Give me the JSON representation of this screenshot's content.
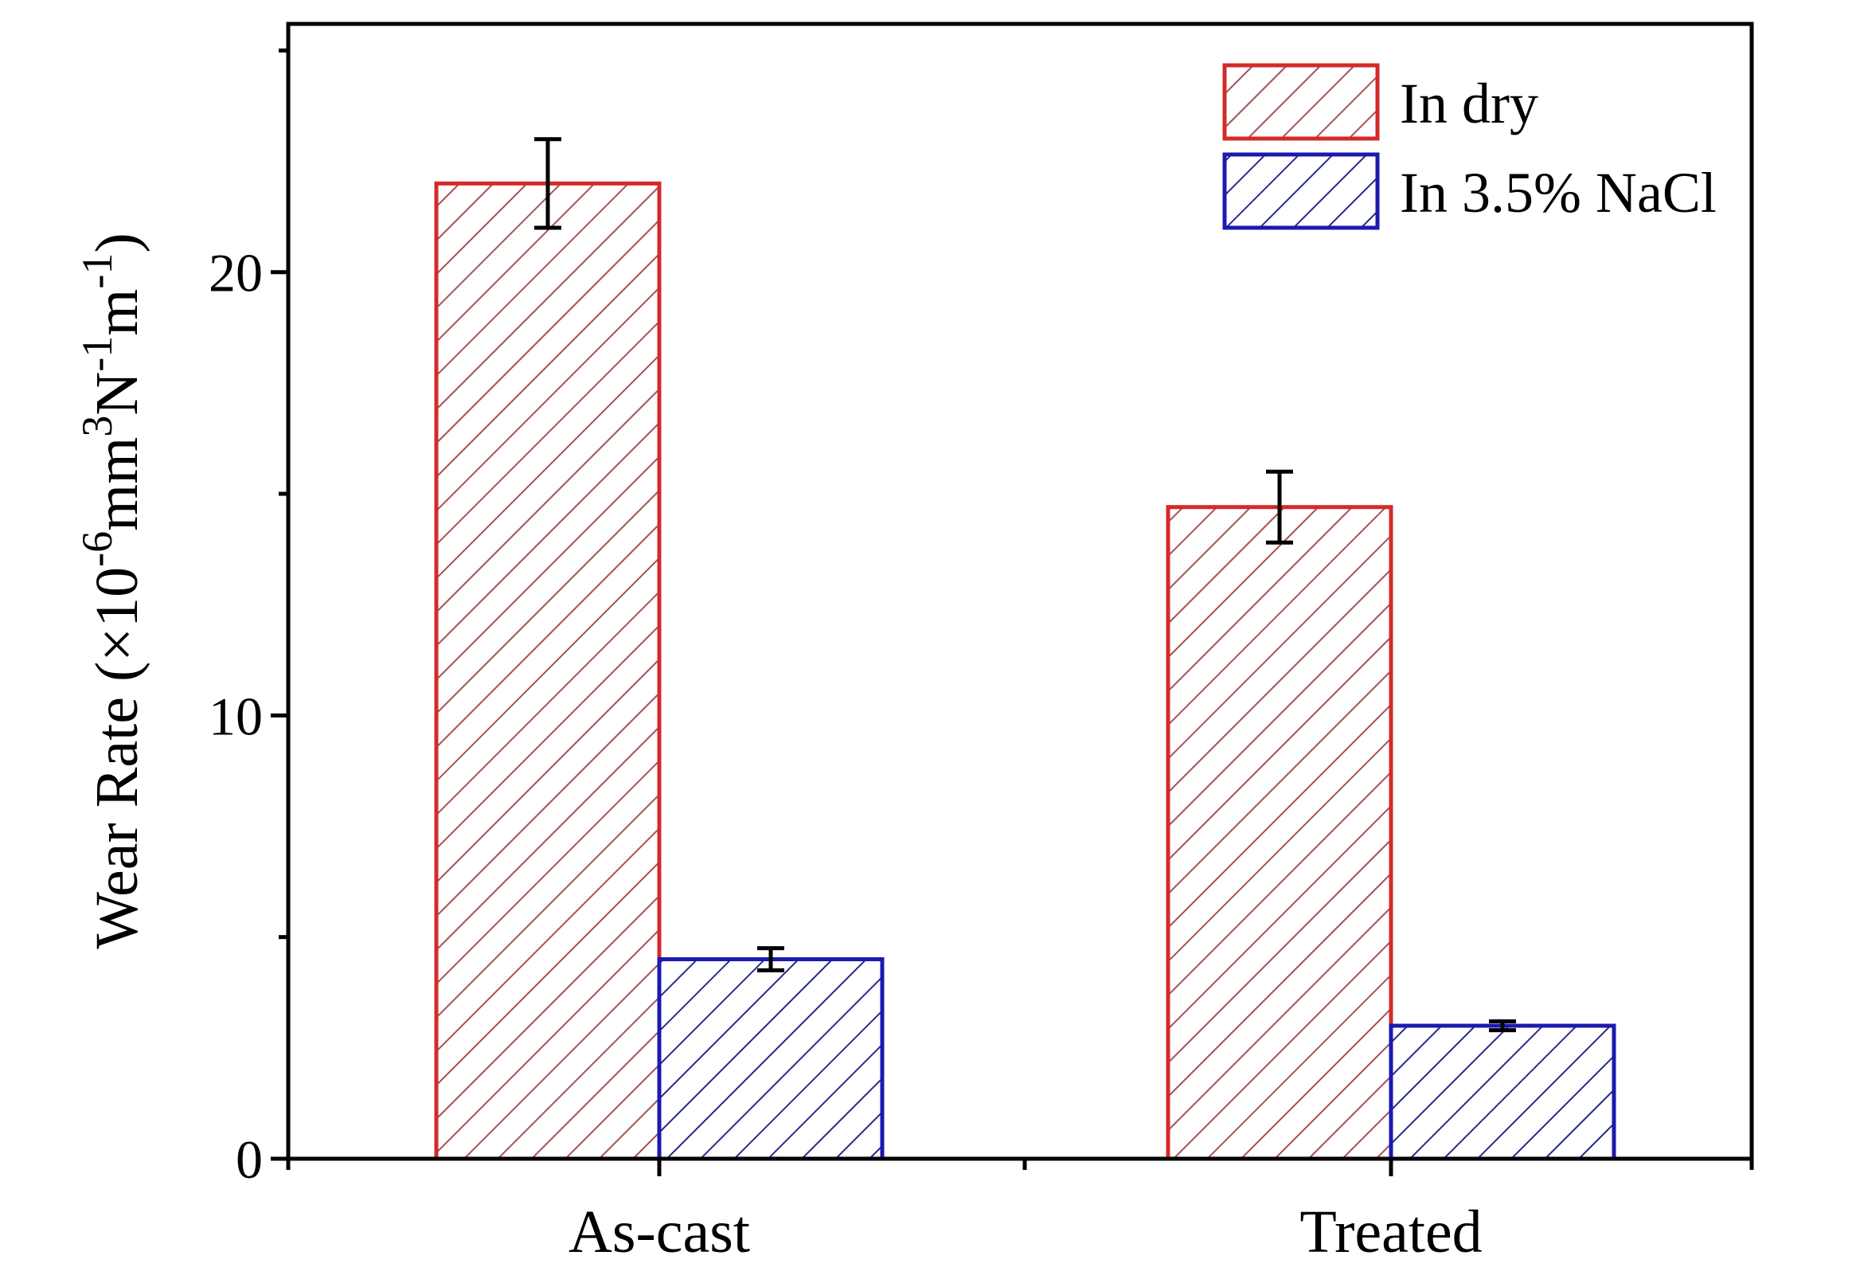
{
  "colors": {
    "dry": "#d42a2a",
    "dry_hatch": "#a85050",
    "nacl": "#1a1ab0",
    "nacl_hatch": "#2a2a8c",
    "axis": "#000000",
    "errorbar": "#000000"
  },
  "chart_data": {
    "type": "bar",
    "title": "",
    "xlabel": "",
    "ylabel": "Wear Rate (×10",
    "ylabel_parts": {
      "pre": "Wear Rate (×10",
      "exp1": "-6",
      "mid1": "mm",
      "exp2": "3",
      "mid2": "N",
      "exp3": "-1",
      "mid3": "m",
      "exp4": "-1",
      "post": ")"
    },
    "categories": [
      "As-cast",
      "Treated"
    ],
    "series": [
      {
        "name": "In dry",
        "values": [
          22.0,
          14.7
        ],
        "errors": [
          1.0,
          0.8
        ],
        "pattern": "hatch",
        "color_key": "dry"
      },
      {
        "name": "In 3.5% NaCl",
        "values": [
          4.5,
          3.0
        ],
        "errors": [
          0.25,
          0.1
        ],
        "pattern": "hatch",
        "color_key": "nacl"
      }
    ],
    "ylim": [
      0,
      25.6
    ],
    "yticks": [
      0,
      10,
      20
    ],
    "ytick_labels": [
      "0",
      "10",
      "20"
    ],
    "grid": false,
    "legend": "top-right"
  }
}
